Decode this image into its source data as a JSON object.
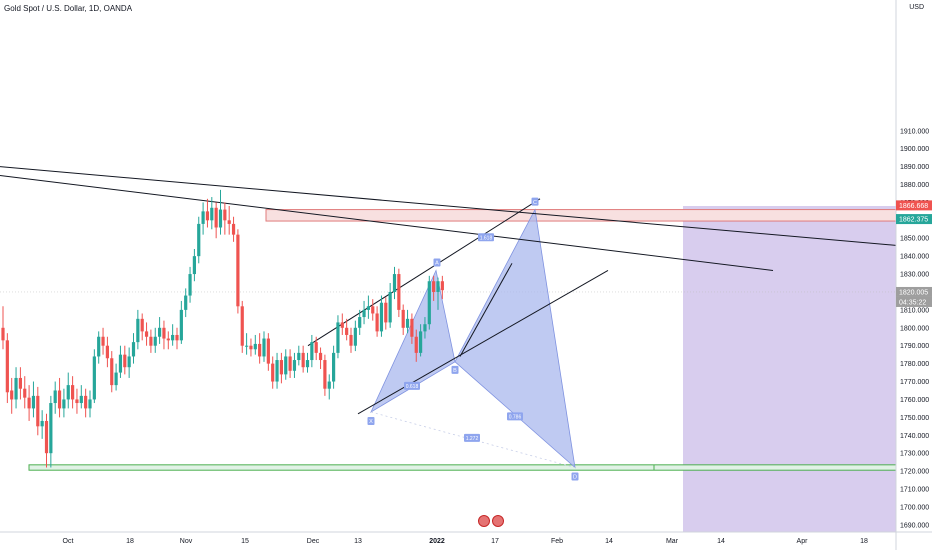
{
  "header": {
    "title": "Gold Spot / U.S. Dollar, 1D, OANDA",
    "currency": "USD"
  },
  "colors": {
    "up": "#26a69a",
    "down": "#ef5350",
    "pattern_fill": "#aab8ee",
    "projection_fill": "#d8cdee",
    "resistance_zone": "#f8e0e0",
    "support_zone": "#e1f2e6",
    "price_tag_red": "#ef5350",
    "price_tag_green": "#26a69a",
    "price_tag_gray": "#9e9e9e"
  },
  "chart_data": {
    "type": "candlestick",
    "y_axis": {
      "ylim": [
        1686,
        1983
      ],
      "ticks": [
        1690,
        1700,
        1710,
        1720,
        1730,
        1740,
        1750,
        1760,
        1770,
        1780,
        1790,
        1800,
        1810,
        1820,
        1830,
        1840,
        1850,
        1860,
        1870,
        1880,
        1890,
        1900,
        1910
      ],
      "tick_labels": [
        "1690.000",
        "1700.000",
        "1710.000",
        "1720.000",
        "1730.000",
        "1740.000",
        "1750.000",
        "1760.000",
        "1770.000",
        "1780.000",
        "1790.000",
        "1800.000",
        "1810.000",
        "1820.000",
        "1830.000",
        "1840.000",
        "1850.000",
        "1860.000",
        "1870.000",
        "1880.000",
        "1890.000",
        "1900.000",
        "1910.000"
      ]
    },
    "x_axis": {
      "tick_labels": [
        "Oct",
        "18",
        "Nov",
        "15",
        "Dec",
        "13",
        "2022",
        "17",
        "Feb",
        "14",
        "Mar",
        "14",
        "Apr",
        "18"
      ]
    },
    "price_tags": [
      {
        "value": 1866.668,
        "label": "1866.668",
        "kind": "red"
      },
      {
        "value": 1862.375,
        "label": "1862.375",
        "kind": "green"
      },
      {
        "value": 1820.005,
        "label": "1820.005",
        "kind": "gray"
      }
    ],
    "countdown": "04:35:22",
    "candles": [
      [
        1800,
        1793,
        1812,
        1788
      ],
      [
        1793,
        1764,
        1797,
        1758
      ],
      [
        1765,
        1760,
        1772,
        1752
      ],
      [
        1760,
        1772,
        1778,
        1755
      ],
      [
        1772,
        1766,
        1778,
        1760
      ],
      [
        1766,
        1761,
        1773,
        1755
      ],
      [
        1761,
        1755,
        1768,
        1748
      ],
      [
        1755,
        1762,
        1770,
        1750
      ],
      [
        1762,
        1745,
        1767,
        1740
      ],
      [
        1745,
        1748,
        1754,
        1738
      ],
      [
        1748,
        1730,
        1752,
        1722
      ],
      [
        1730,
        1758,
        1762,
        1722
      ],
      [
        1758,
        1765,
        1770,
        1752
      ],
      [
        1765,
        1755,
        1772,
        1750
      ],
      [
        1755,
        1760,
        1766,
        1750
      ],
      [
        1760,
        1768,
        1775,
        1755
      ],
      [
        1768,
        1760,
        1773,
        1755
      ],
      [
        1760,
        1758,
        1766,
        1752
      ],
      [
        1758,
        1762,
        1768,
        1755
      ],
      [
        1762,
        1755,
        1766,
        1750
      ],
      [
        1755,
        1760,
        1765,
        1750
      ],
      [
        1760,
        1784,
        1788,
        1758
      ],
      [
        1784,
        1795,
        1798,
        1780
      ],
      [
        1795,
        1790,
        1800,
        1785
      ],
      [
        1790,
        1783,
        1795,
        1778
      ],
      [
        1783,
        1768,
        1787,
        1764
      ],
      [
        1768,
        1775,
        1780,
        1765
      ],
      [
        1775,
        1785,
        1790,
        1772
      ],
      [
        1785,
        1778,
        1790,
        1774
      ],
      [
        1778,
        1784,
        1789,
        1772
      ],
      [
        1784,
        1792,
        1797,
        1780
      ],
      [
        1792,
        1805,
        1810,
        1788
      ],
      [
        1805,
        1798,
        1808,
        1793
      ],
      [
        1798,
        1795,
        1803,
        1790
      ],
      [
        1795,
        1790,
        1799,
        1786
      ],
      [
        1790,
        1795,
        1800,
        1786
      ],
      [
        1795,
        1800,
        1806,
        1791
      ],
      [
        1800,
        1794,
        1804,
        1788
      ],
      [
        1794,
        1793,
        1798,
        1788
      ],
      [
        1793,
        1796,
        1802,
        1790
      ],
      [
        1796,
        1793,
        1800,
        1788
      ],
      [
        1793,
        1810,
        1815,
        1791
      ],
      [
        1810,
        1818,
        1822,
        1806
      ],
      [
        1818,
        1830,
        1834,
        1814
      ],
      [
        1830,
        1840,
        1844,
        1826
      ],
      [
        1840,
        1858,
        1862,
        1836
      ],
      [
        1858,
        1865,
        1870,
        1852
      ],
      [
        1865,
        1860,
        1872,
        1856
      ],
      [
        1860,
        1867,
        1873,
        1855
      ],
      [
        1867,
        1856,
        1870,
        1850
      ],
      [
        1856,
        1866,
        1877,
        1852
      ],
      [
        1866,
        1860,
        1870,
        1852
      ],
      [
        1860,
        1858,
        1868,
        1852
      ],
      [
        1858,
        1852,
        1862,
        1848
      ],
      [
        1852,
        1812,
        1855,
        1808
      ],
      [
        1812,
        1790,
        1815,
        1786
      ],
      [
        1790,
        1790,
        1797,
        1785
      ],
      [
        1790,
        1788,
        1794,
        1784
      ],
      [
        1788,
        1791,
        1796,
        1785
      ],
      [
        1791,
        1784,
        1797,
        1780
      ],
      [
        1784,
        1794,
        1798,
        1781
      ],
      [
        1794,
        1780,
        1797,
        1776
      ],
      [
        1780,
        1770,
        1784,
        1766
      ],
      [
        1770,
        1782,
        1786,
        1766
      ],
      [
        1782,
        1774,
        1786,
        1769
      ],
      [
        1774,
        1784,
        1788,
        1771
      ],
      [
        1784,
        1776,
        1788,
        1772
      ],
      [
        1776,
        1782,
        1786,
        1772
      ],
      [
        1782,
        1786,
        1790,
        1779
      ],
      [
        1786,
        1778,
        1790,
        1775
      ],
      [
        1778,
        1782,
        1786,
        1775
      ],
      [
        1782,
        1792,
        1796,
        1778
      ],
      [
        1792,
        1786,
        1795,
        1782
      ],
      [
        1786,
        1782,
        1789,
        1777
      ],
      [
        1782,
        1766,
        1785,
        1762
      ],
      [
        1766,
        1770,
        1774,
        1760
      ],
      [
        1770,
        1786,
        1790,
        1766
      ],
      [
        1786,
        1803,
        1807,
        1783
      ],
      [
        1803,
        1800,
        1808,
        1796
      ],
      [
        1800,
        1796,
        1805,
        1793
      ],
      [
        1796,
        1790,
        1800,
        1786
      ],
      [
        1790,
        1800,
        1804,
        1787
      ],
      [
        1800,
        1806,
        1810,
        1796
      ],
      [
        1806,
        1810,
        1815,
        1802
      ],
      [
        1810,
        1812,
        1818,
        1805
      ],
      [
        1812,
        1808,
        1816,
        1804
      ],
      [
        1808,
        1798,
        1812,
        1795
      ],
      [
        1798,
        1814,
        1818,
        1795
      ],
      [
        1814,
        1803,
        1817,
        1799
      ],
      [
        1803,
        1820,
        1825,
        1800
      ],
      [
        1820,
        1830,
        1834,
        1816
      ],
      [
        1830,
        1810,
        1833,
        1806
      ],
      [
        1810,
        1800,
        1813,
        1796
      ],
      [
        1800,
        1805,
        1810,
        1797
      ],
      [
        1805,
        1795,
        1808,
        1791
      ],
      [
        1795,
        1786,
        1799,
        1781
      ],
      [
        1786,
        1798,
        1802,
        1784
      ],
      [
        1798,
        1802,
        1806,
        1794
      ],
      [
        1802,
        1826,
        1829,
        1799
      ],
      [
        1826,
        1820,
        1829,
        1815
      ],
      [
        1820,
        1826,
        1828,
        1810
      ],
      [
        1826,
        1821,
        1829,
        1816
      ]
    ],
    "zones": [
      {
        "name": "resistance",
        "from": 1859.6,
        "to": 1866.0
      },
      {
        "name": "support",
        "from": 1720.5,
        "to": 1723.5
      },
      {
        "name": "projection",
        "from": 1686,
        "to": 1868.0
      }
    ],
    "pattern_labels": [
      "X",
      "A",
      "B",
      "C",
      "D"
    ],
    "pattern_ratios": [
      "0.618",
      "1.618",
      "0.786",
      "1.272"
    ]
  }
}
